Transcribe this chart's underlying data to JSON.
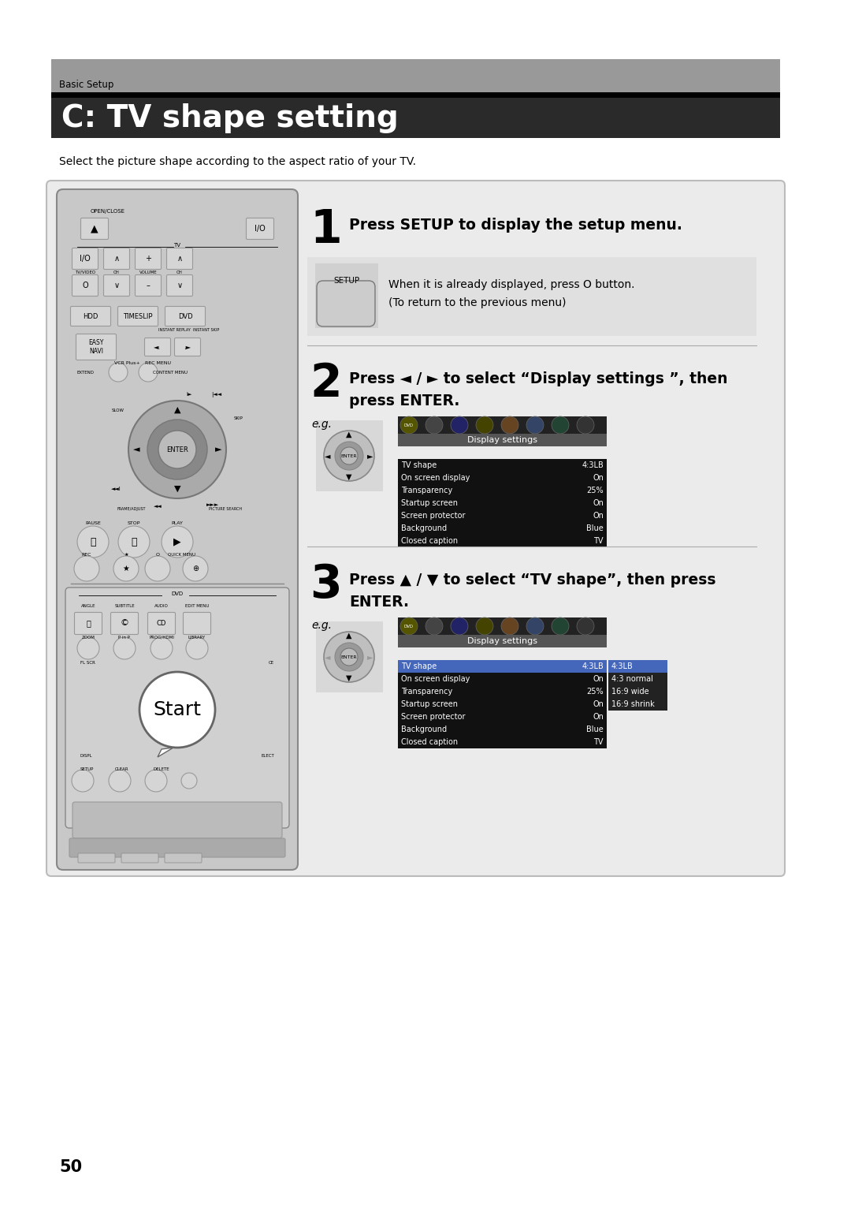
{
  "page_bg": "#ffffff",
  "header_bar_color": "#999999",
  "title_bar_color": "#2a2a2a",
  "title_text": "C: TV shape setting",
  "header_text": "Basic Setup",
  "subtitle_text": "Select the picture shape according to the aspect ratio of your TV.",
  "step1_text": "Press SETUP to display the setup menu.",
  "step1_note1": "When it is already displayed, press O button.",
  "step1_note2": "(To return to the previous menu)",
  "step2_text_line1": "Press ◄ / ► to select “Display settings ”, then",
  "step2_text_line2": "press ENTER.",
  "step3_text_line1": "Press ▲ / ▼ to select “TV shape”, then press",
  "step3_text_line2": "ENTER.",
  "page_number": "50",
  "display_settings_rows": [
    [
      "TV shape",
      "4:3LB"
    ],
    [
      "On screen display",
      "On"
    ],
    [
      "Transparency",
      "25%"
    ],
    [
      "Startup screen",
      "On"
    ],
    [
      "Screen protector",
      "On"
    ],
    [
      "Background",
      "Blue"
    ],
    [
      "Closed caption",
      "TV"
    ]
  ],
  "submenu_options": [
    "4:3LB",
    "4:3 normal",
    "16:9 wide",
    "16:9 shrink"
  ],
  "content_bg": "#ebebeb",
  "content_border": "#bbbbbb",
  "remote_body_color": "#c8c8c8",
  "remote_border_color": "#888888",
  "btn_color": "#d5d5d5",
  "btn_border": "#999999",
  "table_bg": "#111111",
  "table_header_bg": "#555555",
  "table_icon_bg": "#222222",
  "table_highlight": "#4466bb",
  "table_text": "#ffffff",
  "table_submenu_bg": "#222222"
}
